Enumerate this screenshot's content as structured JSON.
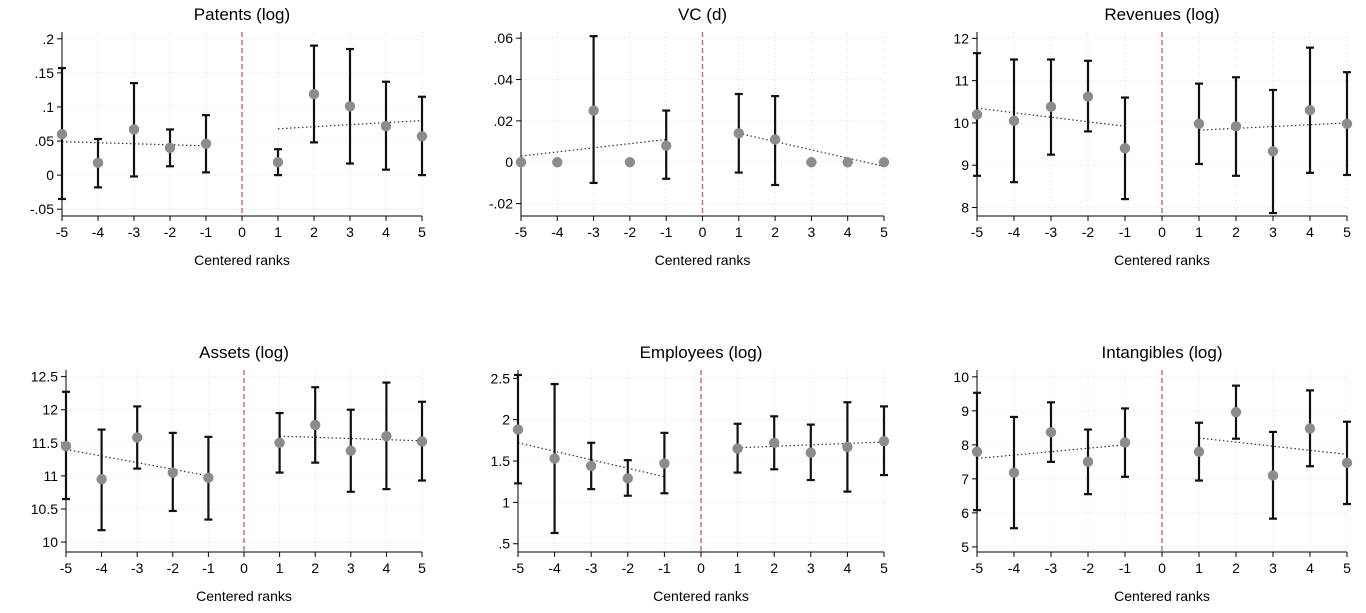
{
  "chart_data": [
    {
      "type": "scatter",
      "title": "Patents (log)",
      "xlabel": "Centered ranks",
      "ylabel": "",
      "xlim": [
        -5,
        5
      ],
      "ylim": [
        -0.06,
        0.21
      ],
      "xticks": [
        -5,
        -4,
        -3,
        -2,
        -1,
        0,
        1,
        2,
        3,
        4,
        5
      ],
      "xtick_labels": [
        "-5",
        "-4",
        "-3",
        "-2",
        "-1",
        "0",
        "1",
        "2",
        "3",
        "4",
        "5"
      ],
      "yticks": [
        -0.05,
        0,
        0.05,
        0.1,
        0.15,
        0.2
      ],
      "ytick_labels": [
        "-.05",
        "0",
        ".05",
        ".1",
        ".15",
        ".2"
      ],
      "grid": true,
      "cutoff_x": 0,
      "points": [
        {
          "x": -5,
          "y": 0.06,
          "lo": -0.035,
          "hi": 0.157
        },
        {
          "x": -4,
          "y": 0.018,
          "lo": -0.018,
          "hi": 0.053
        },
        {
          "x": -3,
          "y": 0.067,
          "lo": -0.002,
          "hi": 0.135
        },
        {
          "x": -2,
          "y": 0.04,
          "lo": 0.013,
          "hi": 0.067
        },
        {
          "x": -1,
          "y": 0.046,
          "lo": 0.004,
          "hi": 0.088
        },
        {
          "x": 1,
          "y": 0.019,
          "lo": 0.0,
          "hi": 0.038
        },
        {
          "x": 2,
          "y": 0.119,
          "lo": 0.048,
          "hi": 0.19
        },
        {
          "x": 3,
          "y": 0.101,
          "lo": 0.017,
          "hi": 0.185
        },
        {
          "x": 4,
          "y": 0.072,
          "lo": 0.008,
          "hi": 0.137
        },
        {
          "x": 5,
          "y": 0.057,
          "lo": 0.0,
          "hi": 0.115
        }
      ],
      "fit_left": [
        [
          -5,
          0.049
        ],
        [
          -1,
          0.043
        ]
      ],
      "fit_right": [
        [
          1,
          0.068
        ],
        [
          5,
          0.08
        ]
      ]
    },
    {
      "type": "scatter",
      "title": "VC (d)",
      "xlabel": "Centered ranks",
      "ylabel": "",
      "xlim": [
        -5,
        5
      ],
      "ylim": [
        -0.026,
        0.063
      ],
      "xticks": [
        -5,
        -4,
        -3,
        -2,
        -1,
        0,
        1,
        2,
        3,
        4,
        5
      ],
      "xtick_labels": [
        "-5",
        "-4",
        "-3",
        "-2",
        "-1",
        "0",
        "1",
        "2",
        "3",
        "4",
        "5"
      ],
      "yticks": [
        -0.02,
        0,
        0.02,
        0.04,
        0.06
      ],
      "ytick_labels": [
        "-.02",
        "0",
        ".02",
        ".04",
        ".06"
      ],
      "grid": true,
      "cutoff_x": 0,
      "points": [
        {
          "x": -5,
          "y": 0.0
        },
        {
          "x": -4,
          "y": 0.0
        },
        {
          "x": -3,
          "y": 0.025,
          "lo": -0.01,
          "hi": 0.061
        },
        {
          "x": -2,
          "y": 0.0
        },
        {
          "x": -1,
          "y": 0.008,
          "lo": -0.008,
          "hi": 0.025
        },
        {
          "x": 1,
          "y": 0.014,
          "lo": -0.005,
          "hi": 0.033
        },
        {
          "x": 2,
          "y": 0.011,
          "lo": -0.011,
          "hi": 0.032
        },
        {
          "x": 3,
          "y": 0.0
        },
        {
          "x": 4,
          "y": 0.0
        },
        {
          "x": 5,
          "y": 0.0
        }
      ],
      "fit_left": [
        [
          -5,
          0.003
        ],
        [
          -1,
          0.011
        ]
      ],
      "fit_right": [
        [
          1,
          0.014
        ],
        [
          5,
          -0.002
        ]
      ]
    },
    {
      "type": "scatter",
      "title": "Revenues (log)",
      "xlabel": "Centered ranks",
      "ylabel": "",
      "xlim": [
        -5,
        5
      ],
      "ylim": [
        7.8,
        12.15
      ],
      "xticks": [
        -5,
        -4,
        -3,
        -2,
        -1,
        0,
        1,
        2,
        3,
        4,
        5
      ],
      "xtick_labels": [
        "-5",
        "-4",
        "-3",
        "-2",
        "-1",
        "0",
        "1",
        "2",
        "3",
        "4",
        "5"
      ],
      "yticks": [
        8,
        9,
        10,
        11,
        12
      ],
      "ytick_labels": [
        "8",
        "9",
        "10",
        "11",
        "12"
      ],
      "grid": true,
      "cutoff_x": 0,
      "points": [
        {
          "x": -5,
          "y": 10.2,
          "lo": 8.75,
          "hi": 11.65
        },
        {
          "x": -4,
          "y": 10.05,
          "lo": 8.6,
          "hi": 11.5
        },
        {
          "x": -3,
          "y": 10.38,
          "lo": 9.25,
          "hi": 11.5
        },
        {
          "x": -2,
          "y": 10.62,
          "lo": 9.8,
          "hi": 11.47
        },
        {
          "x": -1,
          "y": 9.4,
          "lo": 8.2,
          "hi": 10.6
        },
        {
          "x": 1,
          "y": 9.98,
          "lo": 9.03,
          "hi": 10.93
        },
        {
          "x": 2,
          "y": 9.92,
          "lo": 8.75,
          "hi": 11.08
        },
        {
          "x": 3,
          "y": 9.33,
          "lo": 7.87,
          "hi": 10.78
        },
        {
          "x": 4,
          "y": 10.3,
          "lo": 8.82,
          "hi": 11.78
        },
        {
          "x": 5,
          "y": 9.98,
          "lo": 8.77,
          "hi": 11.2
        }
      ],
      "fit_left": [
        [
          -5,
          10.35
        ],
        [
          -1,
          9.92
        ]
      ],
      "fit_right": [
        [
          1,
          9.83
        ],
        [
          5,
          10.0
        ]
      ]
    },
    {
      "type": "scatter",
      "title": "Assets (log)",
      "xlabel": "Centered ranks",
      "ylabel": "",
      "xlim": [
        -5,
        5
      ],
      "ylim": [
        9.85,
        12.6
      ],
      "xticks": [
        -5,
        -4,
        -3,
        -2,
        -1,
        0,
        1,
        2,
        3,
        4,
        5
      ],
      "xtick_labels": [
        "-5",
        "-4",
        "-3",
        "-2",
        "-1",
        "0",
        "1",
        "2",
        "3",
        "4",
        "5"
      ],
      "yticks": [
        10,
        10.5,
        11,
        11.5,
        12,
        12.5
      ],
      "ytick_labels": [
        "10",
        "10.5",
        "11",
        "11.5",
        "12",
        "12.5"
      ],
      "grid": true,
      "cutoff_x": 0,
      "points": [
        {
          "x": -5,
          "y": 11.45,
          "lo": 10.65,
          "hi": 12.27
        },
        {
          "x": -4,
          "y": 10.95,
          "lo": 10.18,
          "hi": 11.7
        },
        {
          "x": -3,
          "y": 11.58,
          "lo": 11.11,
          "hi": 12.05
        },
        {
          "x": -2,
          "y": 11.05,
          "lo": 10.47,
          "hi": 11.65
        },
        {
          "x": -1,
          "y": 10.97,
          "lo": 10.34,
          "hi": 11.59
        },
        {
          "x": 1,
          "y": 11.5,
          "lo": 11.05,
          "hi": 11.95
        },
        {
          "x": 2,
          "y": 11.77,
          "lo": 11.2,
          "hi": 12.34
        },
        {
          "x": 3,
          "y": 11.38,
          "lo": 10.76,
          "hi": 12.0
        },
        {
          "x": 4,
          "y": 11.6,
          "lo": 10.8,
          "hi": 12.41
        },
        {
          "x": 5,
          "y": 11.52,
          "lo": 10.93,
          "hi": 12.12
        }
      ],
      "fit_left": [
        [
          -5,
          11.4
        ],
        [
          -1,
          11.0
        ]
      ],
      "fit_right": [
        [
          1,
          11.6
        ],
        [
          5,
          11.53
        ]
      ]
    },
    {
      "type": "scatter",
      "title": "Employees (log)",
      "xlabel": "Centered ranks",
      "ylabel": "",
      "xlim": [
        -5,
        5
      ],
      "ylim": [
        0.4,
        2.6
      ],
      "xticks": [
        -5,
        -4,
        -3,
        -2,
        -1,
        0,
        1,
        2,
        3,
        4,
        5
      ],
      "xtick_labels": [
        "-5",
        "-4",
        "-3",
        "-2",
        "-1",
        "0",
        "1",
        "2",
        "3",
        "4",
        "5"
      ],
      "yticks": [
        0.5,
        1,
        1.5,
        2,
        2.5
      ],
      "ytick_labels": [
        ".5",
        "1",
        "1.5",
        "2",
        "2.5"
      ],
      "grid": true,
      "cutoff_x": 0,
      "points": [
        {
          "x": -5,
          "y": 1.88,
          "lo": 1.23,
          "hi": 2.54
        },
        {
          "x": -4,
          "y": 1.53,
          "lo": 0.63,
          "hi": 2.43
        },
        {
          "x": -3,
          "y": 1.44,
          "lo": 1.16,
          "hi": 1.72
        },
        {
          "x": -2,
          "y": 1.29,
          "lo": 1.08,
          "hi": 1.51
        },
        {
          "x": -1,
          "y": 1.47,
          "lo": 1.11,
          "hi": 1.84
        },
        {
          "x": 1,
          "y": 1.65,
          "lo": 1.36,
          "hi": 1.95
        },
        {
          "x": 2,
          "y": 1.72,
          "lo": 1.4,
          "hi": 2.04
        },
        {
          "x": 3,
          "y": 1.6,
          "lo": 1.27,
          "hi": 1.94
        },
        {
          "x": 4,
          "y": 1.67,
          "lo": 1.13,
          "hi": 2.21
        },
        {
          "x": 5,
          "y": 1.74,
          "lo": 1.33,
          "hi": 2.16
        }
      ],
      "fit_left": [
        [
          -5,
          1.72
        ],
        [
          -1,
          1.31
        ]
      ],
      "fit_right": [
        [
          1,
          1.66
        ],
        [
          5,
          1.73
        ]
      ]
    },
    {
      "type": "scatter",
      "title": "Intangibles (log)",
      "xlabel": "Centered ranks",
      "ylabel": "",
      "xlim": [
        -5,
        5
      ],
      "ylim": [
        4.85,
        10.2
      ],
      "xticks": [
        -5,
        -4,
        -3,
        -2,
        -1,
        0,
        1,
        2,
        3,
        4,
        5
      ],
      "xtick_labels": [
        "-5",
        "-4",
        "-3",
        "-2",
        "-1",
        "0",
        "1",
        "2",
        "3",
        "4",
        "5"
      ],
      "yticks": [
        5,
        6,
        7,
        8,
        9,
        10
      ],
      "ytick_labels": [
        "5",
        "6",
        "7",
        "8",
        "9",
        "10"
      ],
      "grid": true,
      "cutoff_x": 0,
      "points": [
        {
          "x": -5,
          "y": 7.8,
          "lo": 6.08,
          "hi": 9.53
        },
        {
          "x": -4,
          "y": 7.18,
          "lo": 5.55,
          "hi": 8.82
        },
        {
          "x": -3,
          "y": 8.37,
          "lo": 7.5,
          "hi": 9.25
        },
        {
          "x": -2,
          "y": 7.5,
          "lo": 6.55,
          "hi": 8.45
        },
        {
          "x": -1,
          "y": 8.07,
          "lo": 7.06,
          "hi": 9.07
        },
        {
          "x": 1,
          "y": 7.8,
          "lo": 6.95,
          "hi": 8.65
        },
        {
          "x": 2,
          "y": 8.96,
          "lo": 8.18,
          "hi": 9.74
        },
        {
          "x": 3,
          "y": 7.1,
          "lo": 5.83,
          "hi": 8.38
        },
        {
          "x": 4,
          "y": 8.48,
          "lo": 7.37,
          "hi": 9.6
        },
        {
          "x": 5,
          "y": 7.47,
          "lo": 6.26,
          "hi": 8.68
        }
      ],
      "fit_left": [
        [
          -5,
          7.6
        ],
        [
          -1,
          8.0
        ]
      ],
      "fit_right": [
        [
          1,
          8.2
        ],
        [
          5,
          7.72
        ]
      ]
    }
  ]
}
